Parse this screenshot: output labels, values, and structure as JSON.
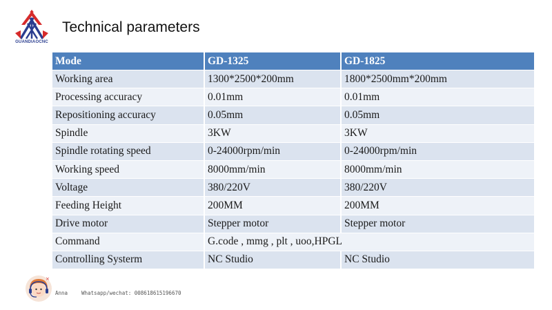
{
  "brand": {
    "logo_text": "GUANDIAOCNC"
  },
  "title": "Technical parameters",
  "table": {
    "headers": [
      "Mode",
      "GD-1325",
      "GD-1825"
    ],
    "rows": [
      [
        "Working area",
        "1300*2500*200mm",
        "1800*2500mm*200mm"
      ],
      [
        "Processing accuracy",
        "0.01mm",
        "0.01mm"
      ],
      [
        "Repositioning accuracy",
        "0.05mm",
        "0.05mm"
      ],
      [
        "Spindle",
        "3KW",
        "3KW"
      ],
      [
        "Spindle rotating speed",
        "0-24000rpm/min",
        "0-24000rpm/min"
      ],
      [
        "Working speed",
        "8000mm/min",
        "8000mm/min"
      ],
      [
        "Voltage",
        "380/220V",
        "380/220V"
      ],
      [
        "Feeding Height",
        "200MM",
        "200MM"
      ],
      [
        "Drive motor",
        "Stepper motor",
        "Stepper motor"
      ],
      [
        "Command",
        "G.code , mmg , plt , uoo,HPGL",
        ""
      ],
      [
        "Controlling Systerm",
        "NC Studio",
        "NC Studio"
      ]
    ]
  },
  "footer": {
    "name": "Anna",
    "contact": "Whatsapp/wechat: 008618615196670"
  },
  "colors": {
    "header_bg": "#4f81bd",
    "row_odd": "#dbe3ef",
    "row_even": "#eef2f8",
    "logo_red": "#d62b2b",
    "logo_blue": "#2a3d8f"
  }
}
